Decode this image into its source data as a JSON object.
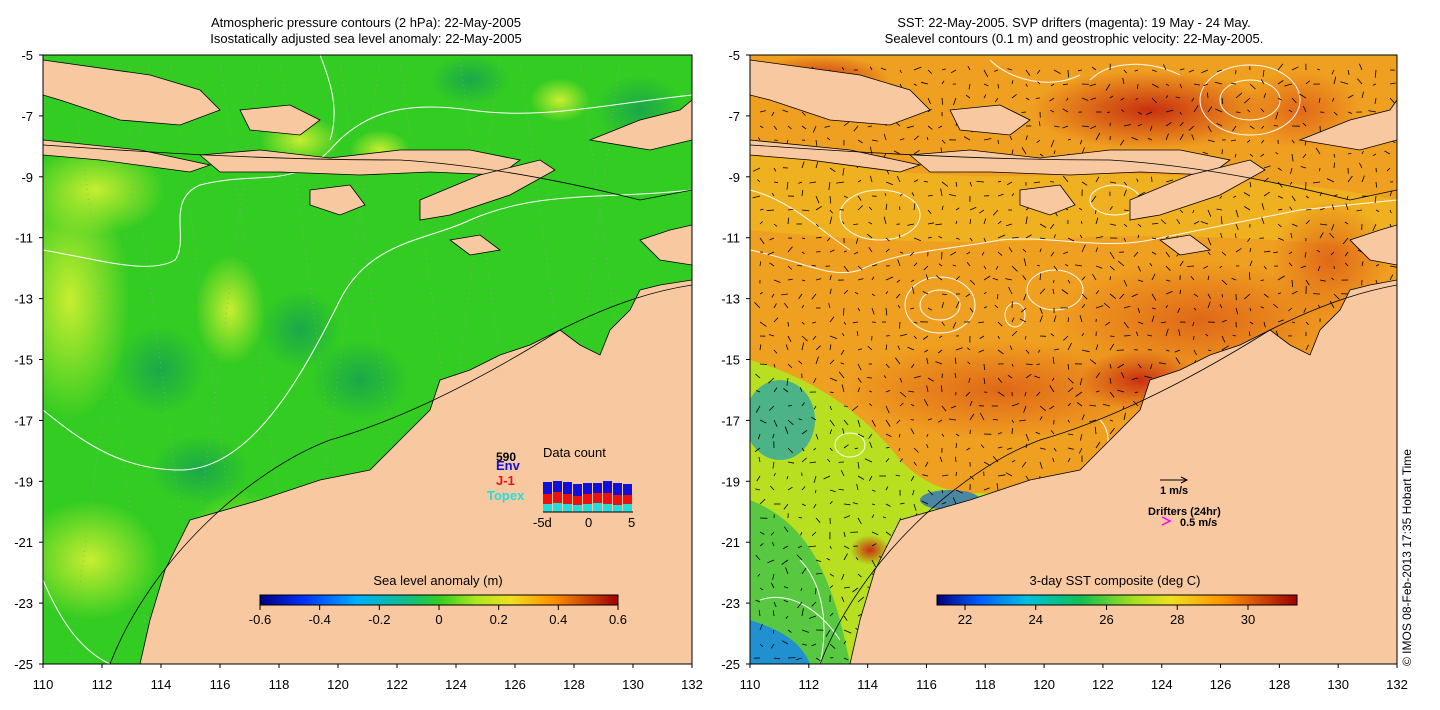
{
  "left_panel": {
    "title_line1": "Atmospheric pressure contours (2 hPa): 22-May-2005",
    "title_line2": "Isostatically adjusted sea level anomaly: 22-May-2005",
    "colorbar": {
      "title": "Sea level anomaly (m)",
      "tick_labels": [
        "-0.6",
        "-0.4",
        "-0.2",
        "0",
        "0.2",
        "0.4",
        "0.6"
      ]
    },
    "data_count": {
      "title": "Data count",
      "total": "590",
      "legend": [
        "Env",
        "J-1",
        "Topex"
      ],
      "legend_colors": [
        "#1010dd",
        "#ee1010",
        "#22dddd"
      ],
      "x_labels": [
        "-5d",
        "0",
        "5"
      ],
      "bars": [
        {
          "topex": 8,
          "j1": 10,
          "env": 12
        },
        {
          "topex": 9,
          "j1": 11,
          "env": 11
        },
        {
          "topex": 8,
          "j1": 10,
          "env": 12
        },
        {
          "topex": 7,
          "j1": 9,
          "env": 12
        },
        {
          "topex": 8,
          "j1": 10,
          "env": 11
        },
        {
          "topex": 9,
          "j1": 10,
          "env": 10
        },
        {
          "topex": 8,
          "j1": 11,
          "env": 12
        },
        {
          "topex": 7,
          "j1": 10,
          "env": 12
        },
        {
          "topex": 8,
          "j1": 9,
          "env": 11
        }
      ]
    }
  },
  "right_panel": {
    "title_line1": "SST: 22-May-2005. SVP drifters (magenta): 19 May - 24 May.",
    "title_line2": "Sealevel contours (0.1 m) and geostrophic velocity: 22-May-2005.",
    "velocity_key": "1 m/s",
    "drifters_label": "Drifters (24hr)",
    "drifter_key": "0.5 m/s",
    "colorbar": {
      "title": "3-day SST composite (deg C)",
      "tick_labels": [
        "22",
        "24",
        "26",
        "28",
        "30"
      ]
    }
  },
  "axes": {
    "x_ticks": [
      "110",
      "112",
      "114",
      "116",
      "118",
      "120",
      "122",
      "124",
      "126",
      "128",
      "130",
      "132"
    ],
    "y_ticks": [
      "-5",
      "-7",
      "-9",
      "-11",
      "-13",
      "-15",
      "-17",
      "-19",
      "-21",
      "-23",
      "-25"
    ]
  },
  "copyright": "© IMOS 08-Feb-2013 17:35 Hobart Time",
  "colors": {
    "land": "#f8c9a0",
    "sla_background": "#33cc22",
    "sst_background": "#f0a020"
  }
}
